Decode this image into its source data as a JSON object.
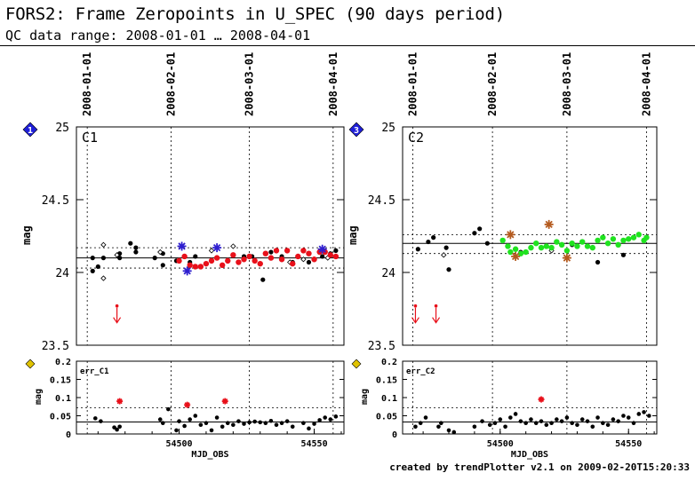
{
  "header": {
    "title": "FORS2: Frame Zeropoints in U_SPEC (90 days period)",
    "subtitle": "QC data range: 2008-01-01 … 2008-04-01"
  },
  "footer": {
    "text": "created by trendPlotter v2.1 on 2009-02-20T15:20:33"
  },
  "colors": {
    "red": "#e8101a",
    "blue": "#2f1fcf",
    "green": "#1fe31f",
    "brown": "#b45a1e",
    "diamond": "#1f1fd8",
    "diamond_small": "#e0c300"
  },
  "chart_data": [
    {
      "type": "scatter",
      "panel": "C1",
      "marker": "1",
      "ylabel": "mag",
      "ylim": [
        23.5,
        25
      ],
      "xlim": [
        54462,
        54561
      ],
      "yticks": [
        "23.5",
        "24",
        "24.5",
        "25"
      ],
      "date_ticks": [
        {
          "label": "2008-01-01",
          "mjd": 54466
        },
        {
          "label": "2008-02-01",
          "mjd": 54497
        },
        {
          "label": "2008-03-01",
          "mjd": 54526
        },
        {
          "label": "2008-04-01",
          "mjd": 54557
        }
      ],
      "mean": 24.1,
      "band": [
        24.03,
        24.17
      ],
      "series": [
        {
          "style": "black",
          "x": [
            54468,
            54468,
            54470,
            54472,
            54478,
            54478,
            54482,
            54484,
            54484,
            54491,
            54494,
            54494,
            54499,
            54504,
            54506,
            54514,
            54524,
            54527,
            54531,
            54534,
            54538,
            54542,
            54548,
            54553,
            54556,
            54558
          ],
          "y": [
            24.1,
            24.01,
            24.04,
            24.1,
            24.13,
            24.1,
            24.2,
            24.14,
            24.17,
            24.1,
            24.13,
            24.05,
            24.08,
            24.07,
            24.11,
            24.1,
            24.11,
            24.11,
            23.95,
            24.14,
            24.11,
            24.07,
            24.07,
            24.11,
            24.13,
            24.15
          ]
        },
        {
          "style": "open",
          "x": [
            54472,
            54472,
            54477,
            54493,
            54512,
            54520,
            54541,
            54546,
            54555
          ],
          "y": [
            24.19,
            23.96,
            24.12,
            24.14,
            24.15,
            24.18,
            24.07,
            24.09,
            24.1
          ]
        },
        {
          "style": "red",
          "x": [
            54500,
            54502,
            54504,
            54506,
            54508,
            54510,
            54512,
            54514,
            54516,
            54518,
            54520,
            54522,
            54524,
            54526,
            54528,
            54530,
            54532,
            54534,
            54536,
            54538,
            54540,
            54542,
            54544,
            54546,
            54548,
            54550,
            54552,
            54554,
            54556,
            54558
          ],
          "y": [
            24.08,
            24.11,
            24.05,
            24.04,
            24.04,
            24.06,
            24.08,
            24.1,
            24.05,
            24.08,
            24.12,
            24.07,
            24.09,
            24.11,
            24.08,
            24.06,
            24.13,
            24.1,
            24.15,
            24.09,
            24.15,
            24.06,
            24.11,
            24.15,
            24.13,
            24.09,
            24.14,
            24.14,
            24.12,
            24.11
          ]
        },
        {
          "style": "blue-star",
          "x": [
            54501,
            54503,
            54514,
            54553
          ],
          "y": [
            24.18,
            24.01,
            24.17,
            24.16
          ]
        }
      ],
      "upper_limits": [
        {
          "x": 54477,
          "y": 23.77
        }
      ],
      "error_panel": {
        "label": "err_C1",
        "ylim": [
          0,
          0.2
        ],
        "yticks": [
          "0",
          "0.05",
          "0.1",
          "0.15",
          "0.2"
        ],
        "xticks": [
          "54500",
          "54550"
        ],
        "xlabel": "MJD_OBS",
        "ylabel": "mag",
        "mean": 0.033,
        "upper": 0.072,
        "x": [
          54469,
          54471,
          54476,
          54477,
          54478,
          54493,
          54494,
          54496,
          54499,
          54500,
          54502,
          54504,
          54506,
          54508,
          54510,
          54512,
          54514,
          54516,
          54518,
          54520,
          54522,
          54524,
          54526,
          54528,
          54530,
          54532,
          54534,
          54536,
          54538,
          54540,
          54542,
          54546,
          54548,
          54550,
          54552,
          54554,
          54556,
          54558
        ],
        "y": [
          0.043,
          0.035,
          0.018,
          0.012,
          0.02,
          0.04,
          0.03,
          0.068,
          0.01,
          0.035,
          0.022,
          0.04,
          0.05,
          0.025,
          0.03,
          0.01,
          0.045,
          0.02,
          0.03,
          0.025,
          0.035,
          0.028,
          0.032,
          0.034,
          0.032,
          0.03,
          0.036,
          0.025,
          0.03,
          0.035,
          0.02,
          0.03,
          0.015,
          0.028,
          0.038,
          0.045,
          0.04,
          0.048
        ],
        "stars_x": [
          54478,
          54503,
          54517
        ],
        "stars_y": [
          0.09,
          0.08,
          0.09
        ]
      }
    },
    {
      "type": "scatter",
      "panel": "C2",
      "marker": "3",
      "ylabel": "mag",
      "ylim": [
        23.5,
        25
      ],
      "xlim": [
        54462,
        54561
      ],
      "yticks": [
        "23.5",
        "24",
        "24.5",
        "25"
      ],
      "date_ticks": [
        {
          "label": "2008-01-01",
          "mjd": 54466
        },
        {
          "label": "2008-02-01",
          "mjd": 54497
        },
        {
          "label": "2008-03-01",
          "mjd": 54526
        },
        {
          "label": "2008-04-01",
          "mjd": 54557
        }
      ],
      "mean": 24.2,
      "band": [
        24.13,
        24.26
      ],
      "series": [
        {
          "style": "black",
          "x": [
            54468,
            54472,
            54474,
            54479,
            54480,
            54490,
            54492,
            54495,
            54508,
            54528,
            54538,
            54548
          ],
          "y": [
            24.16,
            24.21,
            24.24,
            24.17,
            24.02,
            24.27,
            24.3,
            24.2,
            24.14,
            24.19,
            24.07,
            24.12
          ]
        },
        {
          "style": "open",
          "x": [
            54478,
            54520
          ],
          "y": [
            24.12,
            24.15
          ]
        },
        {
          "style": "green",
          "x": [
            54501,
            54503,
            54504,
            54506,
            54508,
            54510,
            54512,
            54514,
            54516,
            54518,
            54520,
            54522,
            54524,
            54526,
            54528,
            54530,
            54532,
            54534,
            54536,
            54538,
            54540,
            54542,
            54544,
            54546,
            54548,
            54550,
            54552,
            54554,
            54556,
            54557
          ],
          "y": [
            24.22,
            24.18,
            24.14,
            24.16,
            24.13,
            24.14,
            24.17,
            24.2,
            24.17,
            24.18,
            24.17,
            24.21,
            24.19,
            24.15,
            24.2,
            24.18,
            24.21,
            24.18,
            24.17,
            24.22,
            24.24,
            24.2,
            24.23,
            24.19,
            24.22,
            24.23,
            24.24,
            24.26,
            24.22,
            24.24
          ]
        },
        {
          "style": "brown-star",
          "x": [
            54504,
            54506,
            54519,
            54526
          ],
          "y": [
            24.26,
            24.11,
            24.33,
            24.1
          ]
        }
      ],
      "upper_limits": [
        {
          "x": 54467,
          "y": 23.77
        },
        {
          "x": 54475,
          "y": 23.77
        }
      ],
      "error_panel": {
        "label": "err_C2",
        "ylim": [
          0,
          0.2
        ],
        "yticks": [
          "0",
          "0.05",
          "0.1",
          "0.15",
          "0.2"
        ],
        "xticks": [
          "54500",
          "54550"
        ],
        "xlabel": "MJD_OBS",
        "ylabel": "mag",
        "mean": 0.033,
        "upper": 0.072,
        "x": [
          54467,
          54469,
          54471,
          54476,
          54477,
          54480,
          54482,
          54490,
          54493,
          54496,
          54498,
          54500,
          54502,
          54504,
          54506,
          54508,
          54510,
          54512,
          54514,
          54516,
          54518,
          54520,
          54522,
          54524,
          54526,
          54528,
          54530,
          54532,
          54534,
          54536,
          54538,
          54540,
          54542,
          54544,
          54546,
          54548,
          54550,
          54552,
          54554,
          54556,
          54558
        ],
        "y": [
          0.02,
          0.03,
          0.045,
          0.02,
          0.03,
          0.01,
          0.005,
          0.02,
          0.035,
          0.025,
          0.03,
          0.04,
          0.02,
          0.045,
          0.055,
          0.035,
          0.03,
          0.04,
          0.03,
          0.035,
          0.025,
          0.03,
          0.04,
          0.035,
          0.045,
          0.03,
          0.025,
          0.04,
          0.035,
          0.02,
          0.045,
          0.03,
          0.025,
          0.04,
          0.035,
          0.05,
          0.045,
          0.03,
          0.055,
          0.06,
          0.05
        ],
        "stars_x": [
          54516
        ],
        "stars_y": [
          0.095
        ]
      }
    }
  ]
}
